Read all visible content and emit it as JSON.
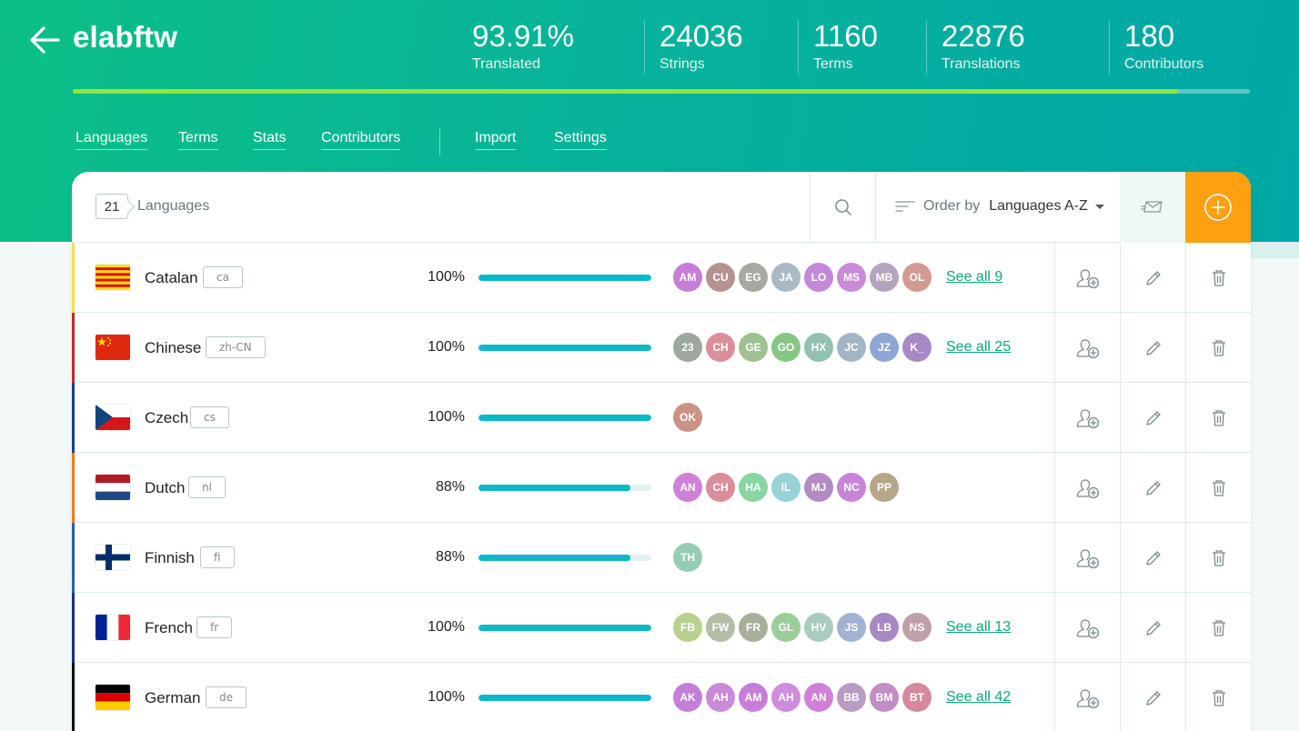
{
  "project": {
    "name": "elabftw"
  },
  "stats": [
    {
      "value": "93.91%",
      "label": "Translated"
    },
    {
      "value": "24036",
      "label": "Strings"
    },
    {
      "value": "1160",
      "label": "Terms"
    },
    {
      "value": "22876",
      "label": "Translations"
    },
    {
      "value": "180",
      "label": "Contributors"
    }
  ],
  "progress_fraction": 0.9391,
  "nav": {
    "items": [
      "Languages",
      "Terms",
      "Stats",
      "Contributors",
      "Import",
      "Settings"
    ],
    "active": "Languages"
  },
  "toolbar": {
    "count": "21",
    "count_label": "Languages",
    "order_label": "Order by",
    "order_value": "Languages A-Z"
  },
  "colors": {
    "accent_green": "#0aa97e",
    "progress_green": "#8be83a",
    "bar_fill": "#0cb8c8",
    "add_button": "#ff9f12"
  },
  "languages": [
    {
      "name": "Catalan",
      "code": "ca",
      "percent": "100%",
      "fraction": 1.0,
      "accent": "#f5e14a",
      "flag": "catalan",
      "avatars": [
        [
          "AM",
          "#c77ed8"
        ],
        [
          "CU",
          "#b59292"
        ],
        [
          "EG",
          "#a8a8a0"
        ],
        [
          "JA",
          "#a9b9c6"
        ],
        [
          "LO",
          "#c289d8"
        ],
        [
          "MS",
          "#c98ad8"
        ],
        [
          "MB",
          "#b4a4be"
        ],
        [
          "OL",
          "#d29a93"
        ]
      ],
      "see_all": "See all 9"
    },
    {
      "name": "Chinese",
      "code": "zh-CN",
      "percent": "100%",
      "fraction": 1.0,
      "accent": "#c8262b",
      "flag": "china",
      "avatars": [
        [
          "23",
          "#9ca89c"
        ],
        [
          "CH",
          "#db8e9a"
        ],
        [
          "GE",
          "#9fc090"
        ],
        [
          "GO",
          "#86c684"
        ],
        [
          "HX",
          "#92c0b2"
        ],
        [
          "JC",
          "#a3b5c4"
        ],
        [
          "JZ",
          "#8ea6d4"
        ],
        [
          "K_",
          "#a689c4"
        ]
      ],
      "see_all": "See all 25"
    },
    {
      "name": "Czech",
      "code": "cs",
      "percent": "100%",
      "fraction": 1.0,
      "accent": "#1e3f86",
      "flag": "czech",
      "avatars": [
        [
          "OK",
          "#c99484"
        ]
      ],
      "see_all": ""
    },
    {
      "name": "Dutch",
      "code": "nl",
      "percent": "88%",
      "fraction": 0.88,
      "accent": "#ef7c1f",
      "flag": "dutch",
      "avatars": [
        [
          "AN",
          "#d180d8"
        ],
        [
          "CH",
          "#db8e9a"
        ],
        [
          "HA",
          "#8ad6a2"
        ],
        [
          "IL",
          "#98d2d6"
        ],
        [
          "MJ",
          "#b28ac4"
        ],
        [
          "NC",
          "#c784d8"
        ],
        [
          "PP",
          "#b7a68a"
        ]
      ],
      "see_all": ""
    },
    {
      "name": "Finnish",
      "code": "fi",
      "percent": "88%",
      "fraction": 0.88,
      "accent": "#2f5fa8",
      "flag": "finland",
      "avatars": [
        [
          "TH",
          "#94cdb4"
        ]
      ],
      "see_all": ""
    },
    {
      "name": "French",
      "code": "fr",
      "percent": "100%",
      "fraction": 1.0,
      "accent": "#1e2f80",
      "flag": "france",
      "avatars": [
        [
          "FB",
          "#b9d08e"
        ],
        [
          "FW",
          "#b4bea6"
        ],
        [
          "FR",
          "#a8b09a"
        ],
        [
          "GL",
          "#9ccc9a"
        ],
        [
          "HV",
          "#a8ccbe"
        ],
        [
          "JS",
          "#a2b2d2"
        ],
        [
          "LB",
          "#a888c2"
        ],
        [
          "NS",
          "#c0a0a8"
        ]
      ],
      "see_all": "See all 13"
    },
    {
      "name": "German",
      "code": "de",
      "percent": "100%",
      "fraction": 1.0,
      "accent": "#111111",
      "flag": "germany",
      "avatars": [
        [
          "AK",
          "#c47fd8"
        ],
        [
          "AH",
          "#c98ad8"
        ],
        [
          "AM",
          "#c77ed8"
        ],
        [
          "AH",
          "#cf8cdc"
        ],
        [
          "AN",
          "#d180d8"
        ],
        [
          "BB",
          "#b89cc4"
        ],
        [
          "BM",
          "#c18ec4"
        ],
        [
          "BT",
          "#d48a9c"
        ]
      ],
      "see_all": "See all 42"
    }
  ],
  "icons": {
    "back": "arrow-left-icon",
    "search": "search-icon",
    "order": "sort-icon",
    "import": "import-icon",
    "add": "plus-circle-icon",
    "row_actions": [
      "add-user-icon",
      "pencil-icon",
      "trash-icon"
    ]
  }
}
